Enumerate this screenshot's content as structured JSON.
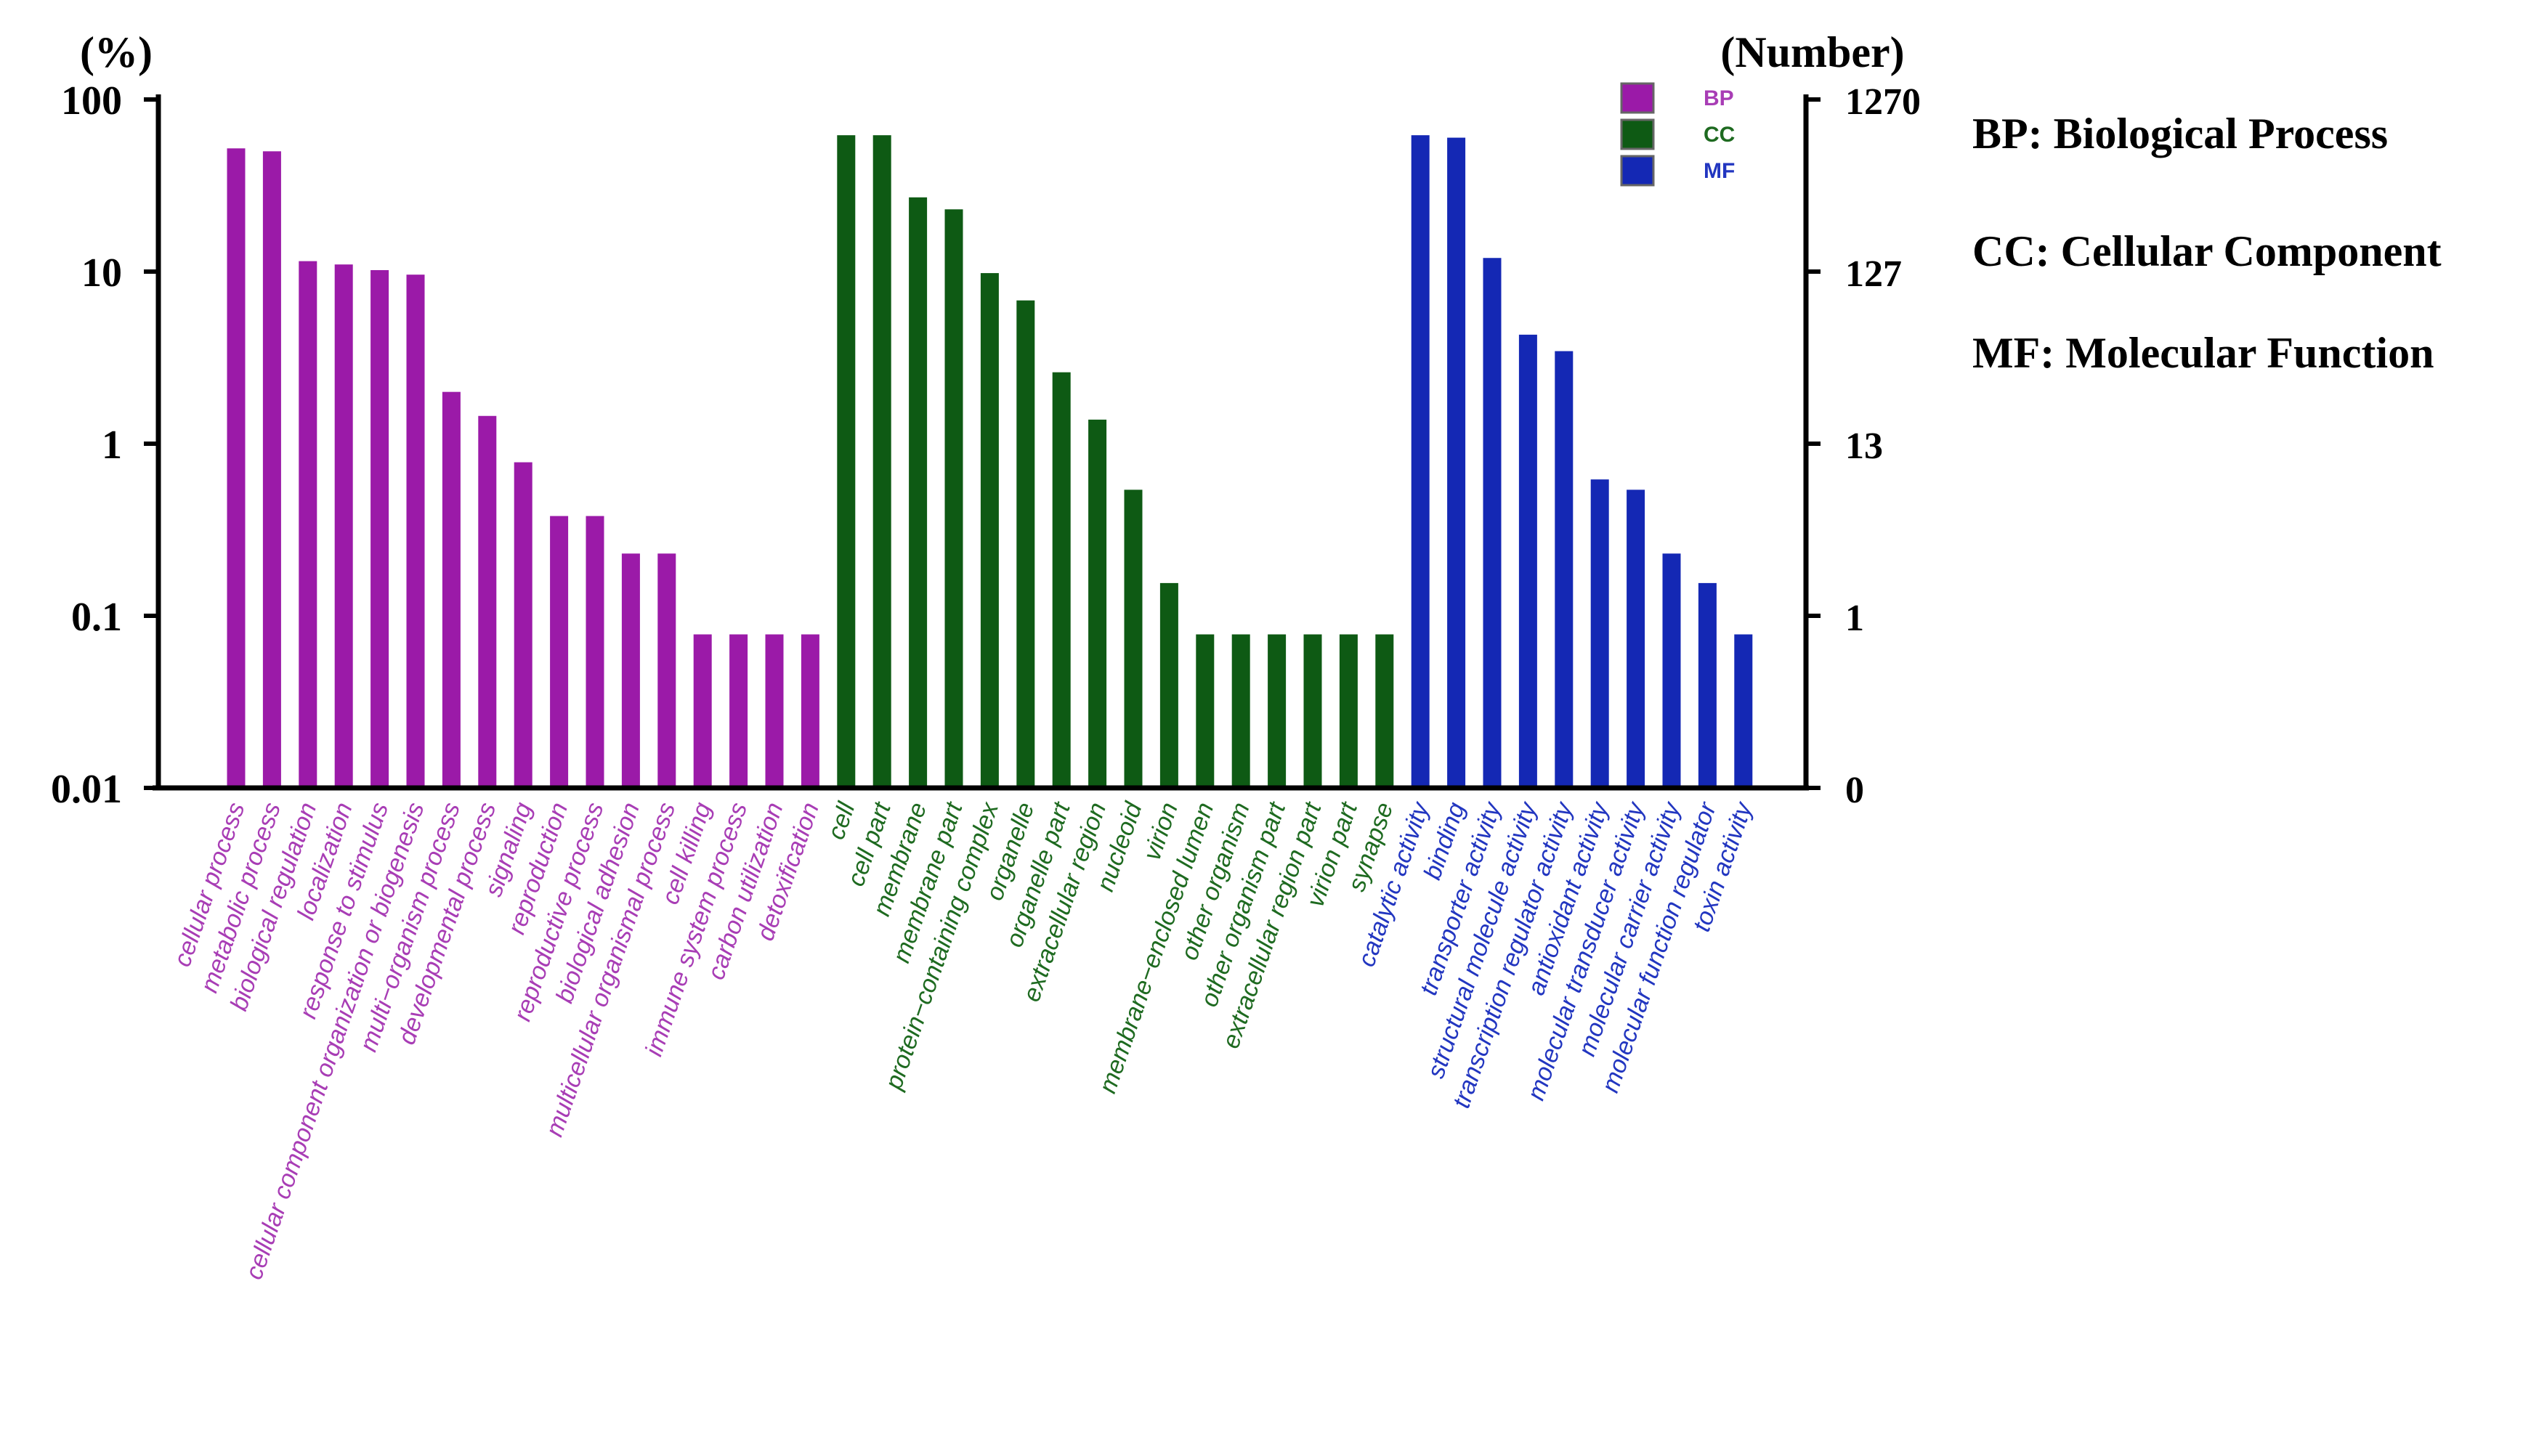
{
  "chart_data": {
    "type": "bar",
    "left_axis": {
      "title": "(%)",
      "scale": "log",
      "range": [
        0.01,
        100
      ],
      "ticks": [
        "100",
        "10",
        "1",
        "0.1",
        "0.01"
      ],
      "tick_values": [
        100,
        10,
        1,
        0.1,
        0.01
      ]
    },
    "right_axis": {
      "title": "(Number)",
      "ticks": [
        "1270",
        "127",
        "13",
        "1",
        "0"
      ],
      "tick_values": [
        100,
        10,
        1,
        0.1,
        0.01
      ]
    },
    "legend": [
      {
        "key": "BP",
        "label": "BP",
        "color": "#9b1aa8"
      },
      {
        "key": "CC",
        "label": "CC",
        "color": "#0e5a14"
      },
      {
        "key": "MF",
        "label": "MF",
        "color": "#1428b4"
      }
    ],
    "label_colors": {
      "BP": "#a83db5",
      "CC": "#1e6a20",
      "MF": "#2236c0"
    },
    "series": [
      {
        "name": "BP",
        "categories": [
          {
            "label": "cellular process",
            "value": 52
          },
          {
            "label": "metabolic process",
            "value": 50
          },
          {
            "label": "biological regulation",
            "value": 11.5
          },
          {
            "label": "localization",
            "value": 11
          },
          {
            "label": "response to stimulus",
            "value": 10.2
          },
          {
            "label": "cellular component organization or biogenesis",
            "value": 9.6
          },
          {
            "label": "multi−organism process",
            "value": 2.0
          },
          {
            "label": "developmental process",
            "value": 1.45
          },
          {
            "label": "signaling",
            "value": 0.78
          },
          {
            "label": "reproduction",
            "value": 0.38
          },
          {
            "label": "reproductive process",
            "value": 0.38
          },
          {
            "label": "biological adhesion",
            "value": 0.23
          },
          {
            "label": "multicellular organismal process",
            "value": 0.23
          },
          {
            "label": "cell killing",
            "value": 0.078
          },
          {
            "label": "immune system process",
            "value": 0.078
          },
          {
            "label": "carbon utilization",
            "value": 0.078
          },
          {
            "label": "detoxification",
            "value": 0.078
          }
        ]
      },
      {
        "name": "CC",
        "categories": [
          {
            "label": "cell",
            "value": 62
          },
          {
            "label": "cell part",
            "value": 62
          },
          {
            "label": "membrane",
            "value": 27
          },
          {
            "label": "membrane part",
            "value": 23
          },
          {
            "label": "protein−containing complex",
            "value": 9.8
          },
          {
            "label": "organelle",
            "value": 6.8
          },
          {
            "label": "organelle part",
            "value": 2.6
          },
          {
            "label": "extracellular region",
            "value": 1.38
          },
          {
            "label": "nucleoid",
            "value": 0.54
          },
          {
            "label": "virion",
            "value": 0.155
          },
          {
            "label": "membrane−enclosed lumen",
            "value": 0.078
          },
          {
            "label": "other organism",
            "value": 0.078
          },
          {
            "label": "other organism part",
            "value": 0.078
          },
          {
            "label": "extracellular region part",
            "value": 0.078
          },
          {
            "label": "virion part",
            "value": 0.078
          },
          {
            "label": "synapse",
            "value": 0.078
          }
        ]
      },
      {
        "name": "MF",
        "categories": [
          {
            "label": "catalytic activity",
            "value": 62
          },
          {
            "label": "binding",
            "value": 60
          },
          {
            "label": "transporter activity",
            "value": 12
          },
          {
            "label": "structural molecule activity",
            "value": 4.3
          },
          {
            "label": "transcription regulator activity",
            "value": 3.45
          },
          {
            "label": "antioxidant activity",
            "value": 0.62
          },
          {
            "label": "molecular transducer activity",
            "value": 0.54
          },
          {
            "label": "molecular carrier activity",
            "value": 0.23
          },
          {
            "label": "molecular function regulator",
            "value": 0.155
          },
          {
            "label": "toxin activity",
            "value": 0.078
          }
        ]
      }
    ]
  },
  "abbreviations": [
    "BP: Biological Process",
    "CC: Cellular Component",
    "MF: Molecular Function"
  ]
}
